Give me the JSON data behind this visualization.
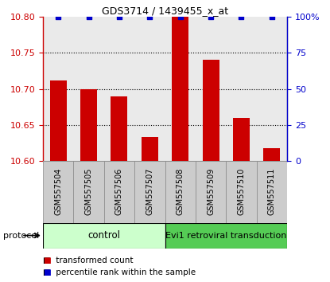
{
  "title": "GDS3714 / 1439455_x_at",
  "samples": [
    "GSM557504",
    "GSM557505",
    "GSM557506",
    "GSM557507",
    "GSM557508",
    "GSM557509",
    "GSM557510",
    "GSM557511"
  ],
  "transformed_counts": [
    10.712,
    10.7,
    10.69,
    10.633,
    10.8,
    10.74,
    10.66,
    10.618
  ],
  "ylim_left": [
    10.6,
    10.8
  ],
  "ylim_right": [
    0,
    100
  ],
  "yticks_left": [
    10.6,
    10.65,
    10.7,
    10.75,
    10.8
  ],
  "yticks_right": [
    0,
    25,
    50,
    75,
    100
  ],
  "bar_color": "#cc0000",
  "scatter_color": "#0000cc",
  "protocol_control_label": "control",
  "protocol_evi1_label": "Evi1 retroviral transduction",
  "protocol_label": "protocol",
  "control_bg": "#ccffcc",
  "evi1_bg": "#55cc55",
  "sample_bg": "#cccccc",
  "legend_bar_label": "transformed count",
  "legend_scatter_label": "percentile rank within the sample",
  "bar_width": 0.55,
  "dotted_lines": [
    10.65,
    10.7,
    10.75
  ],
  "title_fontsize": 9,
  "tick_fontsize": 8,
  "sample_fontsize": 7,
  "legend_fontsize": 7.5
}
